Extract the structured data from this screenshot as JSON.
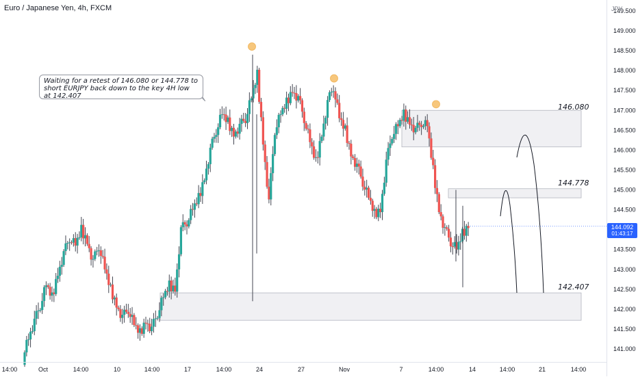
{
  "header": {
    "title": "Euro / Japanese Yen, 4h, FXCM",
    "currency": "JPY"
  },
  "annotation": {
    "callout_text_line1": "Waiting for a retest of 146.080 or 144.778 to",
    "callout_text_line2": "short EURJPY back down to the key 4H low at 142.407"
  },
  "levels": [
    {
      "price": 146.08,
      "label": "146.080",
      "zone": [
        146.08,
        147.0
      ]
    },
    {
      "price": 144.778,
      "label": "144.778",
      "zone": [
        144.8,
        145.03
      ]
    },
    {
      "price": 142.407,
      "label": "142.407",
      "zone": [
        141.72,
        142.41
      ]
    }
  ],
  "current_price": {
    "value": "144.092",
    "countdown": "01:43:17"
  },
  "colors": {
    "up": "#26a69a",
    "down": "#ef5350",
    "wick": "#434651",
    "zone": "#f0f0f3",
    "zone_border": "#b2b5be",
    "marker": "#f7c77c",
    "accent": "#2962ff"
  },
  "chart_data": {
    "type": "candlestick",
    "title": "Euro / Japanese Yen, 4h, FXCM",
    "ylabel": "JPY",
    "ylim": [
      140.75,
      149.25
    ],
    "y_ticks": [
      "141.000",
      "141.500",
      "142.000",
      "142.500",
      "143.000",
      "143.500",
      "144.000",
      "144.500",
      "145.000",
      "145.500",
      "146.000",
      "146.500",
      "147.000",
      "147.500",
      "148.000",
      "148.500",
      "149.000",
      "149.500"
    ],
    "x_ticks": [
      "14:00",
      "Oct",
      "14:00",
      "10",
      "14:00",
      "17",
      "14:00",
      "24",
      "27",
      "Nov",
      "7",
      "14:00",
      "14",
      "14:00",
      "21",
      "14:00"
    ],
    "ohlc_path_closes": [
      140.9,
      141.3,
      141.7,
      142.1,
      142.6,
      142.3,
      142.9,
      143.4,
      143.8,
      143.6,
      144.0,
      143.7,
      143.2,
      143.6,
      143.0,
      142.5,
      142.1,
      141.8,
      142.0,
      141.6,
      141.4,
      141.7,
      141.5,
      141.9,
      142.3,
      142.6,
      142.5,
      144.0,
      144.2,
      144.5,
      144.8,
      145.3,
      146.0,
      146.5,
      146.9,
      146.7,
      146.4,
      146.6,
      146.8,
      147.3,
      147.9,
      146.2,
      144.7,
      146.5,
      146.9,
      147.2,
      147.5,
      147.3,
      146.8,
      146.2,
      145.7,
      146.4,
      147.2,
      147.6,
      146.8,
      146.5,
      145.9,
      145.6,
      145.2,
      144.8,
      144.4,
      144.5,
      145.7,
      146.4,
      146.6,
      146.9,
      146.7,
      146.5,
      146.7,
      146.6,
      145.5,
      144.5,
      144.0,
      143.7,
      143.5,
      143.9,
      144.1
    ],
    "markers": [
      {
        "price": 148.5,
        "label": ""
      },
      {
        "price": 147.7,
        "label": ""
      },
      {
        "price": 147.05,
        "label": ""
      }
    ],
    "projection": "arcs from zones down toward 142.407"
  }
}
